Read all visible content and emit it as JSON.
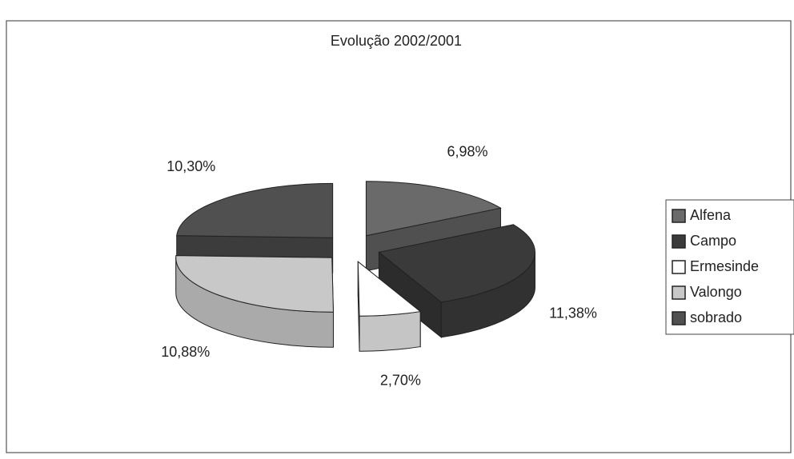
{
  "chart_data": {
    "type": "pie3d",
    "title": "Evolução 2002/2001",
    "categories": [
      "Alfena",
      "Campo",
      "Ermesinde",
      "Valongo",
      "sobrado"
    ],
    "values": [
      6.98,
      11.38,
      2.7,
      10.88,
      10.3
    ],
    "value_labels": [
      "6,98%",
      "11,38%",
      "2,70%",
      "10,88%",
      "10,30%"
    ],
    "colors": [
      "#6a6a6a",
      "#3a3a3a",
      "#ffffff",
      "#c8c8c8",
      "#505050"
    ],
    "legend": "right"
  }
}
